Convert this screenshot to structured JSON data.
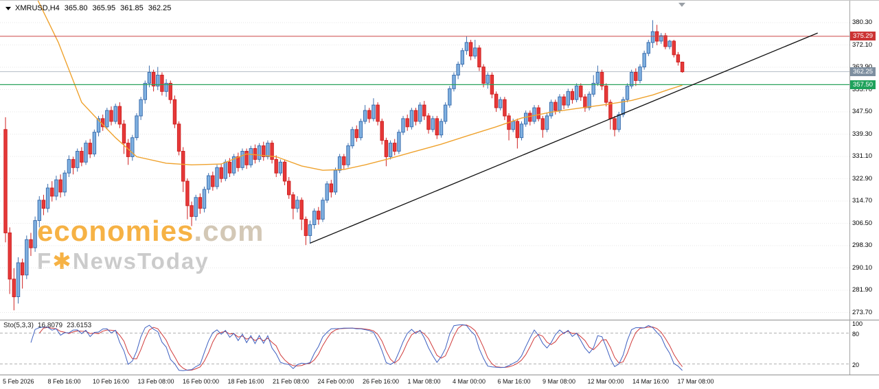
{
  "header": {
    "symbol": "XMRUSD,H4",
    "open": "365.80",
    "high": "365.95",
    "low": "361.85",
    "close": "362.25"
  },
  "watermark": {
    "brand": "economies",
    "brand_suffix": ".com",
    "line2_prefix": "F",
    "line2_star": "✱",
    "line2_rest": "NewsToday"
  },
  "indicator_label": {
    "name": "Sto(5,3,3)",
    "k_value": "16.8079",
    "d_value": "23.6153"
  },
  "chart_data": {
    "type": "candlestick",
    "symbol": "XMRUSD",
    "timeframe": "H4",
    "y_axis": {
      "ticks": [
        380.3,
        372.1,
        363.9,
        355.7,
        347.5,
        339.3,
        331.1,
        322.9,
        314.7,
        306.5,
        298.3,
        290.1,
        281.9,
        273.7
      ]
    },
    "x_axis": {
      "labels": [
        "5 Feb 2026",
        "8 Feb 16:00",
        "10 Feb 16:00",
        "13 Feb 08:00",
        "16 Feb 00:00",
        "18 Feb 16:00",
        "21 Feb 08:00",
        "24 Feb 00:00",
        "26 Feb 16:00",
        "1 Mar 08:00",
        "4 Mar 00:00",
        "6 Mar 16:00",
        "9 Mar 08:00",
        "12 Mar 00:00",
        "14 Mar 16:00",
        "17 Mar 08:00"
      ]
    },
    "levels": {
      "resistance": {
        "price": 375.29,
        "line_color": "#cc4444",
        "tag_color": "#cc3333"
      },
      "support": {
        "price": 357.5,
        "line_color": "#28a25b",
        "tag_color": "#1fa25c"
      },
      "last_price": {
        "price": 362.25,
        "line_color": "#b6bec8",
        "tag_color": "#7e8fa0"
      }
    },
    "trendline": {
      "from": {
        "index": 72,
        "price": 299.2
      },
      "to": {
        "index": 192,
        "price": 376.5
      },
      "color": "#111111"
    },
    "ma_line": {
      "color": "#efa22d",
      "points": [
        [
          7.5,
          389
        ],
        [
          10,
          381
        ],
        [
          12.5,
          373
        ],
        [
          15,
          363
        ],
        [
          18,
          351
        ],
        [
          21,
          346
        ],
        [
          26,
          338
        ],
        [
          31,
          331
        ],
        [
          38,
          328.6
        ],
        [
          44,
          328
        ],
        [
          51,
          328.3
        ],
        [
          57,
          332
        ],
        [
          64,
          331
        ],
        [
          70,
          327.6
        ],
        [
          75,
          326
        ],
        [
          80,
          326.3
        ],
        [
          85,
          328
        ],
        [
          90,
          330
        ],
        [
          96,
          332.6
        ],
        [
          103,
          335.6
        ],
        [
          109,
          338.6
        ],
        [
          116,
          342
        ],
        [
          122,
          345.2
        ],
        [
          129,
          347.4
        ],
        [
          135,
          348.7
        ],
        [
          142,
          350.2
        ],
        [
          148,
          351.7
        ],
        [
          153,
          353.7
        ],
        [
          157,
          355.8
        ],
        [
          160,
          357.3
        ]
      ]
    },
    "candles": [
      [
        341.0,
        345.5,
        299.5,
        303.0
      ],
      [
        303.0,
        305.0,
        280.5,
        286.0
      ],
      [
        286.0,
        290.0,
        274.5,
        279.5
      ],
      [
        279.5,
        294.0,
        277.0,
        292.0
      ],
      [
        292.0,
        293.5,
        282.5,
        287.5
      ],
      [
        287.5,
        302.0,
        286.0,
        300.5
      ],
      [
        300.5,
        303.0,
        294.5,
        297.5
      ],
      [
        297.5,
        309.0,
        296.0,
        307.5
      ],
      [
        307.5,
        316.5,
        305.0,
        315.0
      ],
      [
        315.0,
        317.0,
        309.5,
        312.0
      ],
      [
        312.0,
        321.0,
        310.5,
        319.5
      ],
      [
        319.5,
        322.0,
        314.5,
        316.5
      ],
      [
        316.5,
        324.0,
        315.0,
        322.5
      ],
      [
        322.5,
        324.5,
        316.0,
        318.0
      ],
      [
        318.0,
        326.0,
        316.5,
        325.0
      ],
      [
        325.0,
        331.5,
        323.5,
        330.0
      ],
      [
        330.0,
        331.0,
        324.5,
        327.0
      ],
      [
        327.0,
        334.0,
        325.5,
        333.0
      ],
      [
        333.0,
        334.5,
        327.5,
        329.0
      ],
      [
        329.0,
        337.0,
        328.0,
        336.0
      ],
      [
        336.0,
        337.5,
        330.5,
        332.0
      ],
      [
        332.0,
        341.0,
        331.0,
        340.0
      ],
      [
        340.0,
        346.0,
        338.5,
        345.0
      ],
      [
        345.0,
        346.5,
        340.5,
        342.0
      ],
      [
        342.0,
        349.0,
        341.0,
        348.0
      ],
      [
        348.0,
        349.5,
        342.5,
        344.0
      ],
      [
        344.0,
        350.5,
        343.0,
        349.5
      ],
      [
        349.5,
        351.0,
        341.5,
        343.0
      ],
      [
        343.0,
        344.5,
        332.0,
        336.0
      ],
      [
        336.0,
        337.5,
        328.0,
        331.0
      ],
      [
        331.0,
        339.0,
        329.5,
        338.0
      ],
      [
        338.0,
        347.0,
        337.0,
        346.0
      ],
      [
        346.0,
        353.0,
        344.5,
        352.0
      ],
      [
        352.0,
        359.0,
        350.5,
        358.0
      ],
      [
        358.0,
        364.5,
        356.5,
        362.0
      ],
      [
        362.0,
        363.0,
        355.0,
        357.0
      ],
      [
        357.0,
        364.0,
        355.5,
        361.0
      ],
      [
        361.0,
        362.0,
        353.5,
        355.0
      ],
      [
        355.0,
        359.5,
        353.0,
        358.0
      ],
      [
        358.0,
        359.0,
        350.5,
        352.0
      ],
      [
        352.0,
        353.5,
        341.5,
        343.0
      ],
      [
        343.0,
        344.0,
        331.5,
        333.0
      ],
      [
        333.0,
        334.5,
        318.0,
        322.0
      ],
      [
        322.0,
        323.0,
        308.0,
        313.0
      ],
      [
        313.0,
        314.5,
        305.5,
        309.0
      ],
      [
        309.0,
        317.0,
        307.5,
        316.0
      ],
      [
        316.0,
        317.5,
        310.0,
        312.0
      ],
      [
        312.0,
        320.0,
        310.5,
        319.0
      ],
      [
        319.0,
        325.0,
        317.5,
        324.0
      ],
      [
        324.0,
        325.5,
        318.5,
        320.0
      ],
      [
        320.0,
        328.0,
        319.0,
        327.0
      ],
      [
        327.0,
        328.5,
        321.5,
        323.0
      ],
      [
        323.0,
        330.0,
        322.0,
        329.0
      ],
      [
        329.0,
        330.5,
        323.5,
        325.0
      ],
      [
        325.0,
        332.0,
        324.0,
        331.0
      ],
      [
        331.0,
        332.5,
        325.5,
        327.0
      ],
      [
        327.0,
        334.0,
        326.0,
        333.0
      ],
      [
        333.0,
        334.0,
        326.5,
        328.0
      ],
      [
        328.0,
        335.0,
        327.0,
        334.0
      ],
      [
        334.0,
        335.5,
        328.5,
        330.0
      ],
      [
        330.0,
        336.0,
        329.0,
        335.0
      ],
      [
        335.0,
        336.5,
        329.5,
        331.0
      ],
      [
        331.0,
        337.0,
        330.0,
        336.0
      ],
      [
        336.0,
        337.0,
        328.5,
        330.0
      ],
      [
        330.0,
        331.5,
        323.5,
        325.0
      ],
      [
        325.0,
        330.0,
        324.0,
        329.0
      ],
      [
        329.0,
        330.0,
        320.5,
        322.0
      ],
      [
        322.0,
        323.5,
        315.5,
        317.0
      ],
      [
        317.0,
        318.0,
        308.0,
        312.0
      ],
      [
        312.0,
        316.5,
        310.5,
        315.0
      ],
      [
        315.0,
        316.0,
        304.0,
        308.0
      ],
      [
        308.0,
        309.0,
        298.5,
        302.0
      ],
      [
        302.0,
        307.5,
        299.0,
        306.0
      ],
      [
        306.0,
        312.0,
        304.5,
        311.0
      ],
      [
        311.0,
        312.5,
        306.0,
        308.0
      ],
      [
        308.0,
        316.0,
        307.0,
        315.0
      ],
      [
        315.0,
        322.0,
        314.0,
        321.0
      ],
      [
        321.0,
        322.5,
        316.0,
        318.0
      ],
      [
        318.0,
        327.0,
        317.0,
        326.0
      ],
      [
        326.0,
        332.0,
        325.0,
        331.0
      ],
      [
        331.0,
        332.0,
        326.5,
        328.0
      ],
      [
        328.0,
        336.0,
        327.0,
        335.0
      ],
      [
        335.0,
        342.0,
        334.0,
        341.0
      ],
      [
        341.0,
        342.5,
        336.5,
        338.0
      ],
      [
        338.0,
        345.0,
        337.0,
        344.0
      ],
      [
        344.0,
        350.0,
        343.0,
        348.0
      ],
      [
        348.0,
        349.0,
        343.5,
        345.0
      ],
      [
        345.0,
        352.5,
        344.0,
        350.0
      ],
      [
        350.0,
        351.0,
        342.5,
        344.0
      ],
      [
        344.0,
        345.0,
        335.5,
        337.0
      ],
      [
        337.0,
        338.0,
        327.5,
        331.0
      ],
      [
        331.0,
        337.0,
        330.0,
        336.0
      ],
      [
        336.0,
        337.5,
        331.5,
        333.0
      ],
      [
        333.0,
        341.0,
        332.0,
        340.0
      ],
      [
        340.0,
        346.0,
        339.0,
        345.0
      ],
      [
        345.0,
        346.5,
        340.5,
        342.0
      ],
      [
        342.0,
        349.0,
        341.0,
        348.0
      ],
      [
        348.0,
        349.0,
        342.5,
        344.0
      ],
      [
        344.0,
        351.0,
        343.0,
        350.0
      ],
      [
        350.0,
        351.5,
        344.5,
        346.0
      ],
      [
        346.0,
        347.0,
        339.5,
        341.0
      ],
      [
        341.0,
        346.0,
        340.0,
        345.0
      ],
      [
        345.0,
        346.0,
        337.5,
        339.0
      ],
      [
        339.0,
        345.0,
        338.0,
        344.0
      ],
      [
        344.0,
        351.0,
        343.0,
        350.0
      ],
      [
        350.0,
        357.0,
        349.0,
        356.0
      ],
      [
        356.0,
        362.0,
        355.0,
        361.0
      ],
      [
        361.0,
        366.0,
        359.5,
        365.0
      ],
      [
        365.0,
        371.0,
        364.0,
        370.0
      ],
      [
        370.0,
        375.3,
        368.5,
        373.0
      ],
      [
        373.0,
        374.0,
        366.5,
        368.0
      ],
      [
        368.0,
        374.0,
        367.0,
        371.0
      ],
      [
        371.0,
        372.0,
        362.5,
        364.0
      ],
      [
        364.0,
        365.0,
        356.5,
        358.0
      ],
      [
        358.0,
        362.0,
        356.0,
        361.0
      ],
      [
        361.0,
        362.0,
        352.5,
        354.0
      ],
      [
        354.0,
        355.0,
        347.5,
        349.0
      ],
      [
        349.0,
        353.0,
        348.0,
        352.0
      ],
      [
        352.0,
        353.0,
        344.5,
        346.0
      ],
      [
        346.0,
        347.0,
        337.0,
        341.0
      ],
      [
        341.0,
        345.0,
        340.0,
        344.0
      ],
      [
        344.0,
        345.0,
        334.0,
        338.0
      ],
      [
        338.0,
        344.0,
        337.0,
        343.0
      ],
      [
        343.0,
        348.0,
        342.0,
        347.0
      ],
      [
        347.0,
        348.0,
        342.5,
        344.0
      ],
      [
        344.0,
        350.0,
        343.0,
        349.0
      ],
      [
        349.0,
        350.0,
        344.0,
        345.0
      ],
      [
        345.0,
        346.0,
        338.0,
        341.0
      ],
      [
        341.0,
        347.0,
        340.0,
        346.0
      ],
      [
        346.0,
        352.0,
        345.0,
        351.0
      ],
      [
        351.0,
        352.0,
        346.5,
        348.0
      ],
      [
        348.0,
        354.0,
        347.0,
        353.0
      ],
      [
        353.0,
        354.0,
        348.5,
        350.0
      ],
      [
        350.0,
        356.0,
        349.0,
        355.0
      ],
      [
        355.0,
        356.0,
        350.5,
        352.0
      ],
      [
        352.0,
        358.0,
        351.0,
        357.0
      ],
      [
        357.0,
        358.0,
        351.5,
        353.0
      ],
      [
        353.0,
        354.0,
        347.5,
        349.0
      ],
      [
        349.0,
        355.0,
        348.0,
        354.0
      ],
      [
        354.0,
        361.0,
        353.0,
        358.0
      ],
      [
        358.0,
        364.5,
        357.0,
        362.0
      ],
      [
        362.0,
        363.0,
        355.5,
        357.0
      ],
      [
        357.0,
        358.0,
        349.5,
        351.0
      ],
      [
        351.0,
        352.0,
        341.0,
        345.0
      ],
      [
        345.0,
        346.0,
        338.5,
        341.0
      ],
      [
        341.0,
        347.5,
        340.0,
        346.5
      ],
      [
        346.5,
        353.0,
        345.5,
        352.0
      ],
      [
        352.0,
        358.0,
        351.0,
        357.0
      ],
      [
        357.0,
        363.0,
        356.0,
        362.0
      ],
      [
        362.0,
        363.5,
        357.0,
        359.0
      ],
      [
        359.0,
        365.0,
        358.0,
        364.0
      ],
      [
        364.0,
        370.0,
        363.0,
        369.0
      ],
      [
        369.0,
        374.0,
        368.0,
        373.0
      ],
      [
        373.0,
        381.2,
        371.0,
        377.0
      ],
      [
        377.0,
        379.5,
        372.0,
        373.5
      ],
      [
        373.5,
        376.5,
        372.5,
        375.5
      ],
      [
        375.5,
        376.5,
        370.5,
        371.5
      ],
      [
        371.5,
        374.0,
        370.5,
        373.5
      ],
      [
        373.5,
        374.0,
        367.5,
        368.5
      ],
      [
        368.5,
        369.5,
        364.5,
        365.8
      ],
      [
        365.8,
        365.95,
        361.85,
        362.25
      ]
    ],
    "stochastic": {
      "name": "Sto(5,3,3)",
      "k_period": 5,
      "slowing": 3,
      "d_period": 3,
      "k_last": 16.8079,
      "d_last": 23.6153,
      "levels": [
        80,
        20
      ],
      "scale_marks": [
        100,
        80,
        20
      ],
      "k_color": "#3d5fc0",
      "d_color": "#d03a3a"
    },
    "colors": {
      "up_fill": "#7fb0e0",
      "up_stroke": "#3d6fae",
      "down_fill": "#e63939",
      "down_stroke": "#cf2020",
      "grid": "#e6e6e6",
      "stoch_level": "#b0b0b0"
    }
  }
}
